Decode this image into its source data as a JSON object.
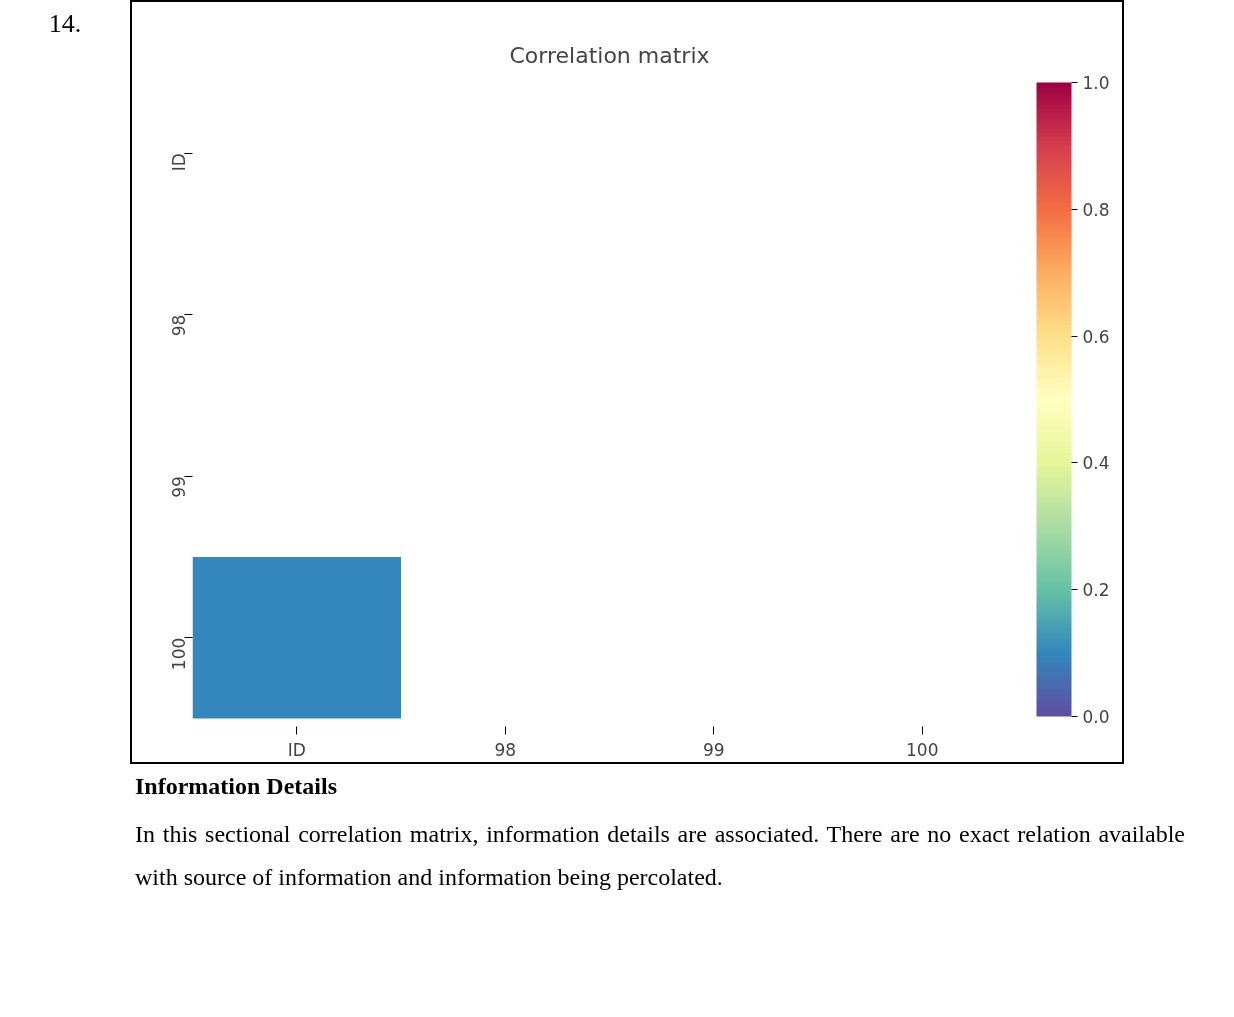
{
  "chart_data": {
    "type": "heatmap",
    "title": "Correlation matrix",
    "categories": [
      "ID",
      "98",
      "99",
      "100"
    ],
    "y_categories": [
      "ID",
      "98",
      "99",
      "100"
    ],
    "cells": [
      [
        null,
        null,
        null,
        null
      ],
      [
        null,
        null,
        null,
        null
      ],
      [
        null,
        null,
        null,
        null
      ],
      [
        0.1,
        null,
        null,
        null
      ]
    ],
    "clim": [
      0,
      1
    ],
    "cticks": [
      {
        "value": 0,
        "label": "0.0"
      },
      {
        "value": 0.2,
        "label": "0.2"
      },
      {
        "value": 0.4,
        "label": "0.4"
      },
      {
        "value": 0.6,
        "label": "0.6"
      },
      {
        "value": 0.8,
        "label": "0.8"
      },
      {
        "value": 1,
        "label": "1.0"
      }
    ],
    "annotations": [
      "14.",
      "Information Details",
      "In this sectional correlation matrix, information details are associated. There are no exact relation available with source of information and information being percolated."
    ]
  }
}
